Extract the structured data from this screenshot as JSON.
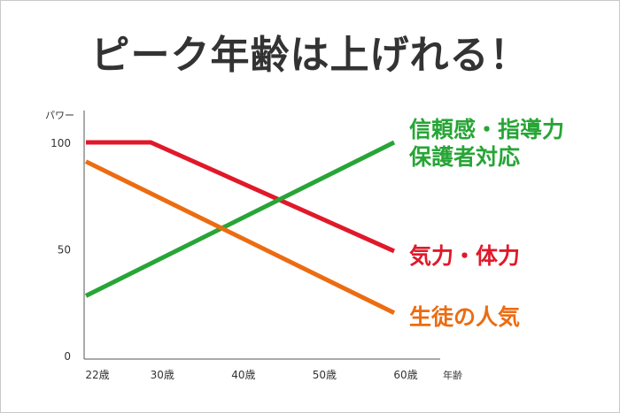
{
  "colors": {
    "background": "#ffffff",
    "axis": "#555555",
    "title": "#333333"
  },
  "chart_data": {
    "type": "line",
    "title": "ピーク年齢は上げれる！",
    "xlabel": "年齢",
    "ylabel": "パワー",
    "x_ticks": [
      "22歳",
      "30歳",
      "40歳",
      "50歳",
      "60歳"
    ],
    "x_tick_values": [
      22,
      30,
      40,
      50,
      60
    ],
    "xlim": [
      22,
      60
    ],
    "y_ticks": [
      "100",
      "50",
      "0"
    ],
    "y_tick_values": [
      100,
      50,
      0
    ],
    "ylim": [
      0,
      100
    ],
    "grid": false,
    "series": [
      {
        "name": "気力・体力",
        "color": "#e0192a",
        "x": [
          22,
          30,
          60
        ],
        "y": [
          100,
          100,
          49
        ],
        "label_lines": [
          "気力・体力"
        ]
      },
      {
        "name": "信頼感・指導力・保護者対応",
        "color": "#27a536",
        "x": [
          22,
          60
        ],
        "y": [
          28,
          100
        ],
        "label_lines": [
          "信頼感・指導力",
          "保護者対応"
        ]
      },
      {
        "name": "生徒の人気",
        "color": "#ec6c11",
        "x": [
          22,
          60
        ],
        "y": [
          91,
          20
        ],
        "label_lines": [
          "生徒の人気"
        ]
      }
    ]
  }
}
